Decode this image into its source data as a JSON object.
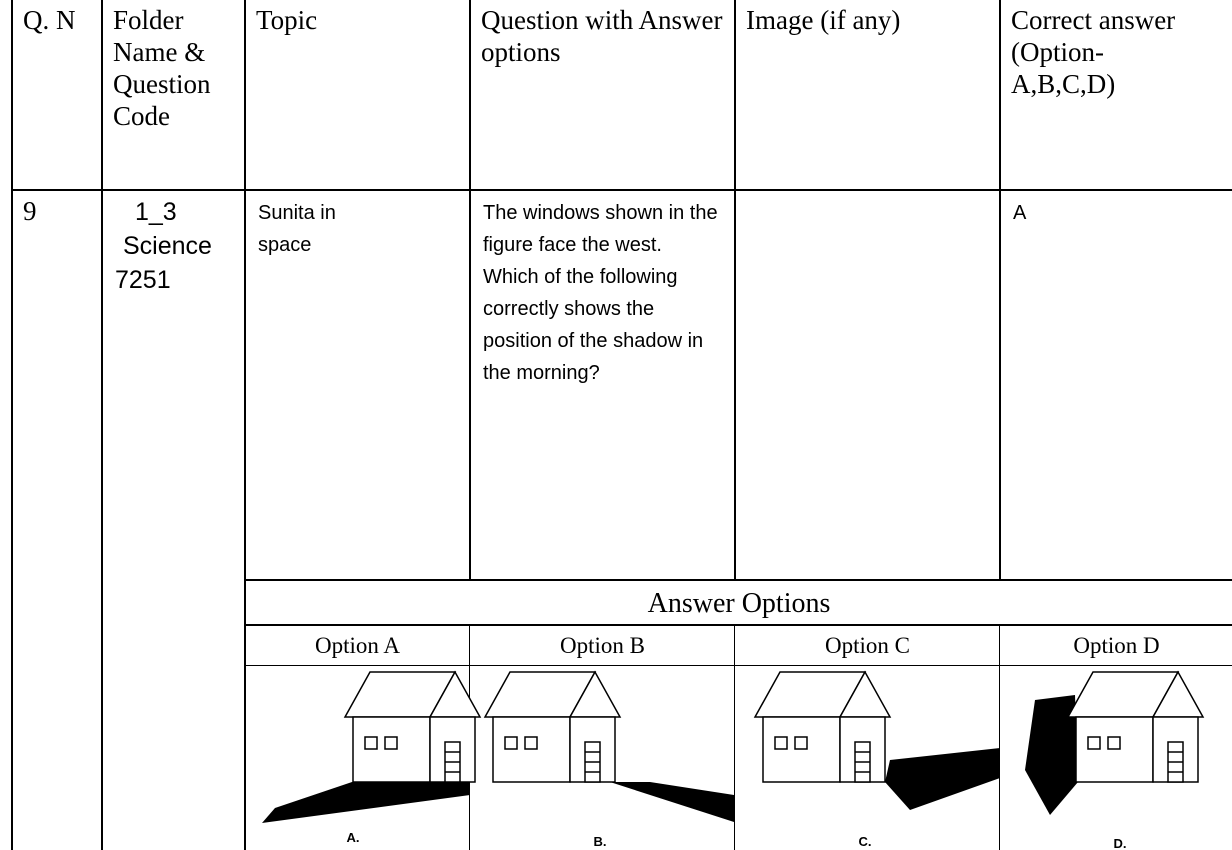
{
  "table": {
    "header": [
      "Q. N",
      "Folder Name & Question Code",
      "Topic",
      "Question with Answer options",
      "Image (if any)",
      "Correct answer (Option-A,B,C,D)"
    ],
    "row": {
      "qn": "9",
      "folder": [
        "1_3",
        "Science",
        "7251"
      ],
      "topic": "Sunita in space",
      "question": "The windows shown in the figure face the west. Which of the following correctly shows the position of the shadow in the morning?",
      "answer": "A"
    },
    "answer_options": {
      "title": "Answer  Options",
      "options": [
        {
          "label": "Option A",
          "caption": "A."
        },
        {
          "label": "Option B",
          "caption": "B."
        },
        {
          "label": "Option C",
          "caption": "C."
        },
        {
          "label": "Option D",
          "caption": "D."
        }
      ]
    }
  }
}
